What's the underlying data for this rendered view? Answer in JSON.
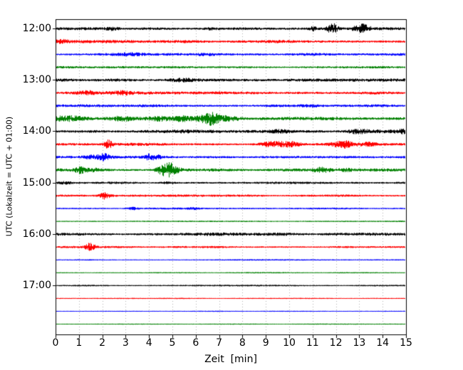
{
  "chart_data": {
    "type": "line",
    "title": "",
    "xlabel": "Zeit  [min]",
    "ylabel": "UTC (Lokalzeit = UTC + 01:00)",
    "x_range": [
      0,
      15
    ],
    "x_ticks": [
      "0",
      "1",
      "2",
      "3",
      "4",
      "5",
      "6",
      "7",
      "8",
      "9",
      "10",
      "11",
      "12",
      "13",
      "14",
      "15"
    ],
    "y_ticks": [
      "12:00",
      "13:00",
      "14:00",
      "15:00",
      "16:00",
      "17:00"
    ],
    "grid": "vertical-dotted",
    "trace_colors": {
      "black": "#000000",
      "red": "#ff0000",
      "blue": "#0000ff",
      "green": "#008000"
    },
    "traces": [
      {
        "time": "12:00",
        "color": "black",
        "noise": 1.1,
        "events": [
          {
            "x": 2.4,
            "amp": 1.5,
            "w": 0.25
          },
          {
            "x": 6.6,
            "amp": 0.8,
            "w": 0.15
          },
          {
            "x": 11.0,
            "amp": 2.2,
            "w": 0.1
          },
          {
            "x": 11.85,
            "amp": 5.5,
            "w": 0.16
          },
          {
            "x": 13.1,
            "amp": 4.5,
            "w": 0.24
          }
        ]
      },
      {
        "time": "12:15",
        "color": "red",
        "noise": 1.15,
        "events": [
          {
            "x": 0.3,
            "amp": 1.0,
            "w": 0.2
          }
        ]
      },
      {
        "time": "12:30",
        "color": "blue",
        "noise": 1.05,
        "events": [
          {
            "x": 3.2,
            "amp": 1.0,
            "w": 0.3
          },
          {
            "x": 6.4,
            "amp": 0.8,
            "w": 0.25
          }
        ]
      },
      {
        "time": "12:45",
        "color": "green",
        "noise": 0.85,
        "events": []
      },
      {
        "time": "13:00",
        "color": "black",
        "noise": 1.25,
        "events": [
          {
            "x": 5.4,
            "amp": 1.0,
            "w": 0.3
          }
        ]
      },
      {
        "time": "13:15",
        "color": "red",
        "noise": 1.25,
        "events": [
          {
            "x": 1.3,
            "amp": 1.4,
            "w": 0.25
          },
          {
            "x": 2.9,
            "amp": 1.2,
            "w": 0.25
          }
        ]
      },
      {
        "time": "13:30",
        "color": "blue",
        "noise": 1.0,
        "events": [
          {
            "x": 10.9,
            "amp": 1.2,
            "w": 0.3
          }
        ]
      },
      {
        "time": "13:45",
        "color": "green",
        "noise": 1.7,
        "events": [
          {
            "x": 0.7,
            "amp": 1.8,
            "w": 0.5
          },
          {
            "x": 2.9,
            "amp": 1.8,
            "w": 0.4
          },
          {
            "x": 4.4,
            "amp": 2.2,
            "w": 0.35
          },
          {
            "x": 5.4,
            "amp": 1.8,
            "w": 0.3
          },
          {
            "x": 6.55,
            "amp": 6.0,
            "w": 0.28
          },
          {
            "x": 7.3,
            "amp": 1.8,
            "w": 0.4
          }
        ]
      },
      {
        "time": "14:00",
        "color": "black",
        "noise": 1.45,
        "events": [
          {
            "x": 9.6,
            "amp": 1.4,
            "w": 0.3
          },
          {
            "x": 12.9,
            "amp": 2.2,
            "w": 0.3
          },
          {
            "x": 14.8,
            "amp": 1.8,
            "w": 0.25
          }
        ]
      },
      {
        "time": "14:15",
        "color": "red",
        "noise": 1.15,
        "events": [
          {
            "x": 2.25,
            "amp": 4.2,
            "w": 0.12
          },
          {
            "x": 9.3,
            "amp": 2.3,
            "w": 0.35
          },
          {
            "x": 10.1,
            "amp": 2.3,
            "w": 0.25
          },
          {
            "x": 12.3,
            "amp": 3.2,
            "w": 0.3
          },
          {
            "x": 13.4,
            "amp": 1.5,
            "w": 0.3
          }
        ]
      },
      {
        "time": "14:30",
        "color": "blue",
        "noise": 1.0,
        "events": [
          {
            "x": 1.5,
            "amp": 1.5,
            "w": 0.2
          },
          {
            "x": 2.05,
            "amp": 3.2,
            "w": 0.18
          },
          {
            "x": 4.0,
            "amp": 2.8,
            "w": 0.15
          },
          {
            "x": 4.35,
            "amp": 1.8,
            "w": 0.15
          }
        ]
      },
      {
        "time": "14:45",
        "color": "green",
        "noise": 1.1,
        "events": [
          {
            "x": 1.05,
            "amp": 3.2,
            "w": 0.15
          },
          {
            "x": 1.6,
            "amp": 1.4,
            "w": 0.2
          },
          {
            "x": 4.8,
            "amp": 8.0,
            "w": 0.3
          },
          {
            "x": 11.4,
            "amp": 2.2,
            "w": 0.25
          },
          {
            "x": 12.4,
            "amp": 1.4,
            "w": 0.25
          }
        ]
      },
      {
        "time": "15:00",
        "color": "black",
        "noise": 0.8,
        "events": [
          {
            "x": 0.4,
            "amp": 1.4,
            "w": 0.2
          },
          {
            "x": 4.8,
            "amp": 1.0,
            "w": 0.2
          }
        ]
      },
      {
        "time": "15:15",
        "color": "red",
        "noise": 0.8,
        "events": [
          {
            "x": 2.1,
            "amp": 3.4,
            "w": 0.15
          }
        ]
      },
      {
        "time": "15:30",
        "color": "blue",
        "noise": 0.6,
        "events": [
          {
            "x": 3.3,
            "amp": 1.4,
            "w": 0.15
          },
          {
            "x": 5.9,
            "amp": 0.9,
            "w": 0.15
          }
        ]
      },
      {
        "time": "15:45",
        "color": "green",
        "noise": 0.45,
        "events": []
      },
      {
        "time": "16:00",
        "color": "black",
        "noise": 1.2,
        "events": []
      },
      {
        "time": "16:15",
        "color": "red",
        "noise": 0.7,
        "events": [
          {
            "x": 1.45,
            "amp": 4.0,
            "w": 0.16
          }
        ]
      },
      {
        "time": "16:30",
        "color": "blue",
        "noise": 0.4,
        "events": []
      },
      {
        "time": "16:45",
        "color": "green",
        "noise": 0.35,
        "events": []
      },
      {
        "time": "17:00",
        "color": "black",
        "noise": 0.5,
        "events": []
      },
      {
        "time": "17:15",
        "color": "red",
        "noise": 0.3,
        "events": []
      },
      {
        "time": "17:30",
        "color": "blue",
        "noise": 0.3,
        "events": []
      },
      {
        "time": "17:45",
        "color": "green",
        "noise": 0.25,
        "events": []
      }
    ]
  }
}
